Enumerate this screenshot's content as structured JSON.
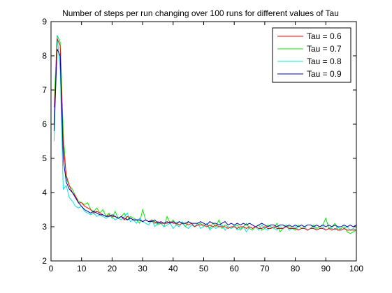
{
  "chart_data": {
    "type": "line",
    "title": "Number of steps per run changing over 100 runs for different values of Tau",
    "xlabel": "",
    "ylabel": "",
    "xlim": [
      0,
      100
    ],
    "ylim": [
      2,
      9
    ],
    "xticks": [
      0,
      10,
      20,
      30,
      40,
      50,
      60,
      70,
      80,
      90,
      100
    ],
    "yticks": [
      2,
      3,
      4,
      5,
      6,
      7,
      8,
      9
    ],
    "grid": false,
    "legend_position": "top-right",
    "x": [
      1,
      2,
      3,
      4,
      5,
      6,
      7,
      8,
      9,
      10,
      11,
      12,
      13,
      14,
      15,
      16,
      17,
      18,
      19,
      20,
      21,
      22,
      23,
      24,
      25,
      26,
      27,
      28,
      29,
      30,
      31,
      32,
      33,
      34,
      35,
      36,
      37,
      38,
      39,
      40,
      41,
      42,
      43,
      44,
      45,
      46,
      47,
      48,
      49,
      50,
      51,
      52,
      53,
      54,
      55,
      56,
      57,
      58,
      59,
      60,
      61,
      62,
      63,
      64,
      65,
      66,
      67,
      68,
      69,
      70,
      71,
      72,
      73,
      74,
      75,
      76,
      77,
      78,
      79,
      80,
      81,
      82,
      83,
      84,
      85,
      86,
      87,
      88,
      89,
      90,
      91,
      92,
      93,
      94,
      95,
      96,
      97,
      98,
      99,
      100
    ],
    "series": [
      {
        "name": "Tau = 0.6",
        "color": "#ff0000",
        "values": [
          6.0,
          8.5,
          8.3,
          5.4,
          4.5,
          4.2,
          4.0,
          3.9,
          3.7,
          3.7,
          3.6,
          3.55,
          3.5,
          3.4,
          3.45,
          3.4,
          3.35,
          3.3,
          3.35,
          3.3,
          3.3,
          3.25,
          3.3,
          3.2,
          3.3,
          3.25,
          3.2,
          3.2,
          3.2,
          3.15,
          3.2,
          3.15,
          3.2,
          3.1,
          3.15,
          3.1,
          3.1,
          3.1,
          3.15,
          3.1,
          3.1,
          3.05,
          3.1,
          3.1,
          3.05,
          3.1,
          3.0,
          3.05,
          3.05,
          3.05,
          3.0,
          3.05,
          3.0,
          3.05,
          3.0,
          3.0,
          3.0,
          2.95,
          3.0,
          3.0,
          2.95,
          3.0,
          3.0,
          2.95,
          3.0,
          2.95,
          3.0,
          2.95,
          2.95,
          3.0,
          2.95,
          2.95,
          3.0,
          2.95,
          2.95,
          2.95,
          3.0,
          2.95,
          2.95,
          2.95,
          2.9,
          2.95,
          2.95,
          2.9,
          2.95,
          2.95,
          2.9,
          2.95,
          2.95,
          2.9,
          2.95,
          2.9,
          2.95,
          2.9,
          2.9,
          2.95,
          2.9,
          2.9,
          2.9,
          2.9
        ]
      },
      {
        "name": "Tau = 0.7",
        "color": "#00ee00",
        "values": [
          6.5,
          8.6,
          8.4,
          5.8,
          4.4,
          4.2,
          4.1,
          3.9,
          3.75,
          3.7,
          3.65,
          3.7,
          3.5,
          3.45,
          3.55,
          3.4,
          3.5,
          3.3,
          3.4,
          3.25,
          3.45,
          3.25,
          3.3,
          3.4,
          3.2,
          3.3,
          3.25,
          3.2,
          3.1,
          3.5,
          3.2,
          3.15,
          3.2,
          3.15,
          3.05,
          3.1,
          3.0,
          3.3,
          3.1,
          3.2,
          3.05,
          3.15,
          3.1,
          3.0,
          3.15,
          3.1,
          3.0,
          3.05,
          3.1,
          3.0,
          3.1,
          2.95,
          3.1,
          3.0,
          3.2,
          2.95,
          3.05,
          3.0,
          2.95,
          3.0,
          3.05,
          2.9,
          3.0,
          3.1,
          2.95,
          2.9,
          3.0,
          3.05,
          2.9,
          2.95,
          3.05,
          3.0,
          2.95,
          3.1,
          2.85,
          2.95,
          3.05,
          3.0,
          2.95,
          2.9,
          3.05,
          2.95,
          3.0,
          2.9,
          2.95,
          3.05,
          2.95,
          3.0,
          3.05,
          3.25,
          2.95,
          3.0,
          3.1,
          2.9,
          2.95,
          3.0,
          2.85,
          2.8,
          2.85,
          2.9
        ]
      },
      {
        "name": "Tau = 0.8",
        "color": "#00e5e5",
        "values": [
          5.5,
          8.6,
          7.6,
          4.1,
          4.2,
          3.85,
          3.75,
          3.6,
          3.55,
          3.6,
          3.45,
          3.4,
          3.35,
          3.4,
          3.3,
          3.35,
          3.3,
          3.25,
          3.3,
          3.3,
          3.2,
          3.25,
          3.2,
          3.3,
          3.4,
          3.15,
          3.2,
          3.1,
          3.25,
          3.15,
          3.1,
          3.05,
          3.2,
          3.0,
          3.1,
          3.1,
          3.0,
          3.05,
          3.1,
          2.95,
          3.05,
          3.0,
          3.15,
          3.0,
          2.95,
          3.05,
          3.0,
          3.1,
          2.95,
          3.0,
          3.1,
          2.9,
          3.0,
          2.95,
          3.0,
          3.05,
          2.9,
          3.0,
          2.95,
          3.05,
          2.9,
          2.95,
          3.0,
          2.85,
          3.0,
          2.95,
          3.0,
          2.9,
          3.05,
          2.95,
          2.9,
          3.0,
          2.95,
          2.9,
          3.0,
          2.95,
          3.05,
          2.9,
          2.95,
          3.0,
          2.9,
          2.95,
          3.0,
          2.9,
          2.95,
          3.0,
          2.9,
          2.95,
          3.0,
          2.9,
          2.95,
          2.95,
          2.9,
          3.0,
          2.9,
          2.95,
          3.0,
          2.9,
          2.95,
          2.9
        ]
      },
      {
        "name": "Tau = 0.9",
        "color": "#0000aa",
        "values": [
          5.8,
          8.2,
          8.0,
          5.0,
          4.3,
          4.1,
          4.0,
          3.85,
          3.7,
          3.6,
          3.5,
          3.45,
          3.4,
          3.45,
          3.4,
          3.35,
          3.35,
          3.3,
          3.3,
          3.35,
          3.3,
          3.25,
          3.3,
          3.25,
          3.2,
          3.25,
          3.2,
          3.2,
          3.2,
          3.15,
          3.2,
          3.15,
          3.15,
          3.2,
          3.1,
          3.15,
          3.1,
          3.15,
          3.1,
          3.15,
          3.1,
          3.15,
          3.1,
          3.1,
          3.15,
          3.1,
          3.1,
          3.1,
          3.15,
          3.1,
          3.05,
          3.15,
          3.1,
          3.1,
          3.05,
          3.1,
          3.15,
          3.05,
          3.1,
          3.05,
          3.1,
          3.05,
          3.1,
          3.05,
          3.1,
          3.05,
          3.0,
          3.05,
          3.1,
          3.05,
          3.0,
          3.05,
          3.05,
          3.0,
          3.05,
          3.05,
          3.0,
          3.05,
          3.0,
          3.05,
          3.0,
          3.05,
          3.0,
          3.05,
          3.05,
          3.0,
          3.05,
          3.0,
          3.05,
          3.0,
          3.05,
          3.0,
          3.05,
          3.0,
          3.0,
          3.05,
          3.0,
          3.05,
          3.0,
          3.05
        ]
      }
    ]
  }
}
